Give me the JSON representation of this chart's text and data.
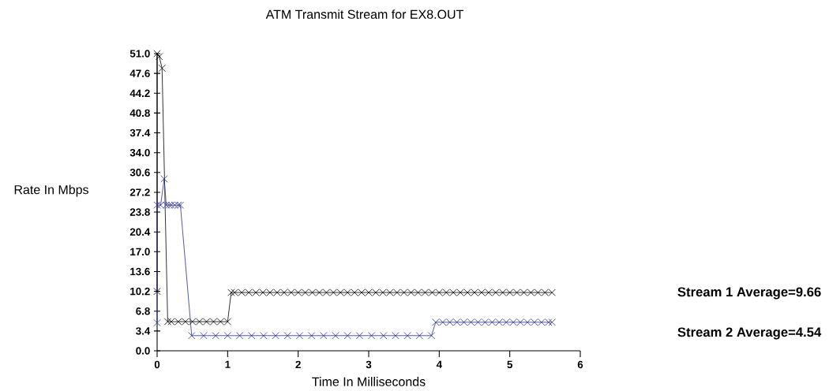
{
  "chart_data": {
    "type": "line",
    "title": "ATM Transmit Stream for EX8.OUT",
    "xlabel": "Time In Milliseconds",
    "ylabel": "Rate In Mbps",
    "annotations": [
      "Stream 1 Average=9.66",
      "Stream 2 Average=4.54"
    ],
    "xlim": [
      0,
      6
    ],
    "xticks": [
      0,
      1,
      2,
      3,
      4,
      5,
      6
    ],
    "ylim": [
      0,
      51
    ],
    "yticks": [
      {
        "value": 0,
        "label": "0.0"
      },
      3.4,
      6.8,
      10.2,
      13.6,
      {
        "value": 17,
        "label": "17.0"
      },
      20.4,
      23.8,
      27.2,
      30.6,
      {
        "value": 34,
        "label": "34.0"
      },
      37.4,
      40.8,
      44.2,
      47.6,
      {
        "value": 51,
        "label": "51.0"
      }
    ],
    "marker": "cross",
    "grid": false,
    "series": [
      {
        "color": "#000000",
        "x": [
          0,
          0,
          0.03,
          0.07,
          0.15,
          0.2,
          0.3,
          0.4,
          0.5,
          0.6,
          0.7,
          0.8,
          0.9,
          1.0,
          1.05,
          1.1,
          1.2,
          1.3,
          1.4,
          1.5,
          1.6,
          1.7,
          1.8,
          1.9,
          2.0,
          2.1,
          2.2,
          2.3,
          2.4,
          2.5,
          2.6,
          2.7,
          2.8,
          2.9,
          3.0,
          3.1,
          3.2,
          3.3,
          3.4,
          3.5,
          3.6,
          3.7,
          3.8,
          3.9,
          4.0,
          4.1,
          4.2,
          4.3,
          4.4,
          4.5,
          4.6,
          4.7,
          4.8,
          4.9,
          5.0,
          5.1,
          5.2,
          5.3,
          5.4,
          5.5,
          5.6
        ],
        "values": [
          10.2,
          51,
          50.5,
          48.5,
          5.0,
          5.0,
          5.0,
          5.0,
          5.0,
          5.0,
          5.0,
          5.0,
          5.0,
          5.0,
          10.0,
          10.0,
          10.0,
          10.0,
          10.0,
          10.0,
          10.0,
          10.0,
          10.0,
          10.0,
          10.0,
          10.0,
          10.0,
          10.0,
          10.0,
          10.0,
          10.0,
          10.0,
          10.0,
          10.0,
          10.0,
          10.0,
          10.0,
          10.0,
          10.0,
          10.0,
          10.0,
          10.0,
          10.0,
          10.0,
          10.0,
          10.0,
          10.0,
          10.0,
          10.0,
          10.0,
          10.0,
          10.0,
          10.0,
          10.0,
          10.0,
          10.0,
          10.0,
          10.0,
          10.0,
          10.0,
          10.0
        ]
      },
      {
        "color": "#2e3192",
        "x": [
          0,
          0,
          0.05,
          0.1,
          0.13,
          0.17,
          0.2,
          0.25,
          0.3,
          0.33,
          0.49,
          0.66,
          0.83,
          1.0,
          1.17,
          1.34,
          1.51,
          1.68,
          1.85,
          2.02,
          2.19,
          2.36,
          2.53,
          2.7,
          2.87,
          3.04,
          3.21,
          3.38,
          3.55,
          3.72,
          3.89,
          3.95,
          4.05,
          4.15,
          4.25,
          4.35,
          4.45,
          4.55,
          4.65,
          4.75,
          4.85,
          4.95,
          5.05,
          5.15,
          5.25,
          5.35,
          5.45,
          5.55,
          5.6
        ],
        "values": [
          4.8,
          25,
          25,
          29.5,
          25,
          25,
          25,
          25,
          25,
          25,
          2.6,
          2.6,
          2.6,
          2.6,
          2.6,
          2.6,
          2.6,
          2.6,
          2.6,
          2.6,
          2.6,
          2.6,
          2.6,
          2.6,
          2.6,
          2.6,
          2.6,
          2.6,
          2.6,
          2.6,
          2.6,
          4.9,
          4.9,
          4.9,
          4.9,
          4.9,
          4.9,
          4.9,
          4.9,
          4.9,
          4.9,
          4.9,
          4.9,
          4.9,
          4.9,
          4.9,
          4.9,
          4.9,
          4.9
        ]
      }
    ]
  }
}
